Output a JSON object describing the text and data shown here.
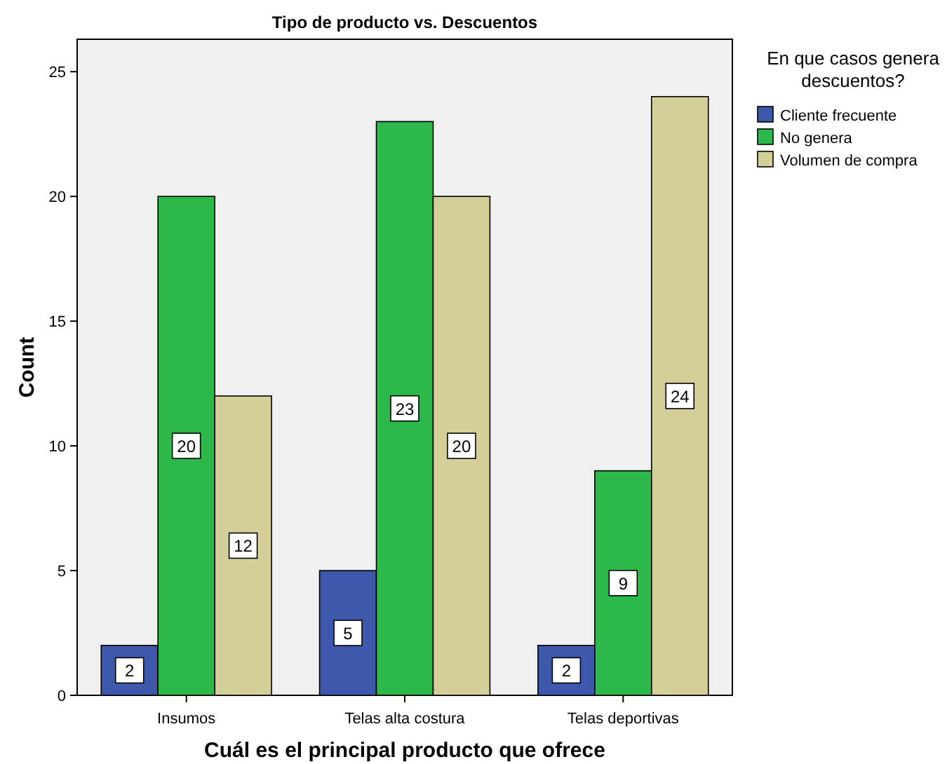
{
  "chart_data": {
    "type": "bar",
    "title": "Tipo de producto vs. Descuentos",
    "xlabel": "Cuál es el principal producto que ofrece",
    "ylabel": "Count",
    "legend_title": "En que casos genera descuentos?",
    "categories": [
      "Insumos",
      "Telas alta costura",
      "Telas deportivas"
    ],
    "series": [
      {
        "name": "Cliente frecuente",
        "color": "#3e58ac",
        "values": [
          2,
          5,
          2
        ]
      },
      {
        "name": "No genera",
        "color": "#2db84a",
        "values": [
          20,
          23,
          9
        ]
      },
      {
        "name": "Volumen de compra",
        "color": "#d4ce99",
        "values": [
          12,
          20,
          24
        ]
      }
    ],
    "ylim": [
      0,
      26.3
    ],
    "yticks": [
      0,
      5,
      10,
      15,
      20,
      25
    ],
    "grid": false,
    "legend": "right",
    "data_labels": true
  }
}
